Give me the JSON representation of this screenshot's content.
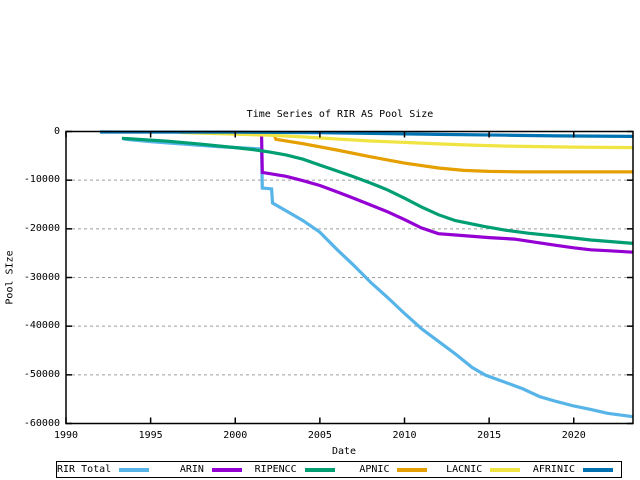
{
  "window": {
    "background": "#ffffff"
  },
  "chart_data": {
    "type": "line",
    "title": "Time Series of RIR AS Pool Size",
    "xlabel": "Date",
    "ylabel": "Pool SIze",
    "xlim": [
      1990,
      2023.5
    ],
    "ylim": [
      -60000,
      0
    ],
    "x_ticks": [
      1990,
      1995,
      2000,
      2005,
      2010,
      2015,
      2020
    ],
    "y_ticks": [
      0,
      -10000,
      -20000,
      -30000,
      -40000,
      -50000,
      -60000
    ],
    "grid": true,
    "grid_color": "#9e9e9e",
    "axis_color": "#000000",
    "legend_position": "bottom",
    "series": [
      {
        "name": "RIR Total",
        "color": "#56B4E9",
        "points": [
          [
            1993.4,
            -1550
          ],
          [
            1995,
            -2100
          ],
          [
            1997,
            -2600
          ],
          [
            1999,
            -3100
          ],
          [
            2000.5,
            -3400
          ],
          [
            2001.55,
            -3600
          ],
          [
            2001.6,
            -11600
          ],
          [
            2002.15,
            -11800
          ],
          [
            2002.2,
            -14700
          ],
          [
            2003,
            -16300
          ],
          [
            2004,
            -18300
          ],
          [
            2005,
            -20700
          ],
          [
            2006,
            -24200
          ],
          [
            2007,
            -27500
          ],
          [
            2008,
            -31000
          ],
          [
            2009,
            -34100
          ],
          [
            2010,
            -37400
          ],
          [
            2011,
            -40500
          ],
          [
            2012,
            -43100
          ],
          [
            2013,
            -45700
          ],
          [
            2014,
            -48500
          ],
          [
            2014.8,
            -50100
          ],
          [
            2016,
            -51600
          ],
          [
            2017,
            -52900
          ],
          [
            2018,
            -54500
          ],
          [
            2019,
            -55500
          ],
          [
            2020,
            -56400
          ],
          [
            2021,
            -57100
          ],
          [
            2022,
            -57900
          ],
          [
            2023.5,
            -58600
          ]
        ]
      },
      {
        "name": "ARIN",
        "color": "#9400D3",
        "points": [
          [
            2001.55,
            -100
          ],
          [
            2001.6,
            -8400
          ],
          [
            2003,
            -9200
          ],
          [
            2004,
            -10100
          ],
          [
            2005,
            -11100
          ],
          [
            2006,
            -12400
          ],
          [
            2007,
            -13700
          ],
          [
            2008,
            -15100
          ],
          [
            2009,
            -16500
          ],
          [
            2010,
            -18100
          ],
          [
            2011,
            -19800
          ],
          [
            2012,
            -21000
          ],
          [
            2013.5,
            -21400
          ],
          [
            2015,
            -21800
          ],
          [
            2016.5,
            -22100
          ],
          [
            2018,
            -22900
          ],
          [
            2019,
            -23400
          ],
          [
            2020,
            -23900
          ],
          [
            2021,
            -24300
          ],
          [
            2022,
            -24500
          ],
          [
            2023.5,
            -24800
          ]
        ]
      },
      {
        "name": "RIPENCC",
        "color": "#009E73",
        "points": [
          [
            1993.3,
            -1400
          ],
          [
            1996,
            -2000
          ],
          [
            1998,
            -2600
          ],
          [
            2000,
            -3300
          ],
          [
            2001,
            -3700
          ],
          [
            2002,
            -4200
          ],
          [
            2003,
            -4800
          ],
          [
            2004,
            -5700
          ],
          [
            2005,
            -6900
          ],
          [
            2006,
            -8100
          ],
          [
            2007,
            -9300
          ],
          [
            2008,
            -10600
          ],
          [
            2009,
            -12000
          ],
          [
            2010,
            -13700
          ],
          [
            2011,
            -15500
          ],
          [
            2012,
            -17100
          ],
          [
            2013,
            -18300
          ],
          [
            2014.7,
            -19500
          ],
          [
            2016,
            -20300
          ],
          [
            2017.3,
            -20900
          ],
          [
            2019,
            -21500
          ],
          [
            2021,
            -22300
          ],
          [
            2023.5,
            -23000
          ]
        ]
      },
      {
        "name": "APNIC",
        "color": "#E69F00",
        "points": [
          [
            2002.3,
            -700
          ],
          [
            2002.4,
            -1600
          ],
          [
            2004,
            -2500
          ],
          [
            2006,
            -3800
          ],
          [
            2008,
            -5200
          ],
          [
            2010,
            -6500
          ],
          [
            2012,
            -7500
          ],
          [
            2013.5,
            -8000
          ],
          [
            2015,
            -8200
          ],
          [
            2017,
            -8300
          ],
          [
            2023.5,
            -8300
          ]
        ]
      },
      {
        "name": "LACNIC",
        "color": "#F0E442",
        "points": [
          [
            1996.7,
            -200
          ],
          [
            1999,
            -450
          ],
          [
            2002,
            -750
          ],
          [
            2004,
            -1100
          ],
          [
            2006,
            -1550
          ],
          [
            2008,
            -1950
          ],
          [
            2010,
            -2250
          ],
          [
            2012,
            -2550
          ],
          [
            2014,
            -2800
          ],
          [
            2016,
            -3000
          ],
          [
            2018,
            -3100
          ],
          [
            2020,
            -3200
          ],
          [
            2023.5,
            -3300
          ]
        ]
      },
      {
        "name": "AFRINIC",
        "color": "#0072B2",
        "points": [
          [
            1992,
            -100
          ],
          [
            2000,
            -150
          ],
          [
            2005,
            -250
          ],
          [
            2008,
            -400
          ],
          [
            2012,
            -600
          ],
          [
            2016,
            -750
          ],
          [
            2019,
            -900
          ],
          [
            2023.5,
            -1000
          ]
        ]
      }
    ]
  }
}
